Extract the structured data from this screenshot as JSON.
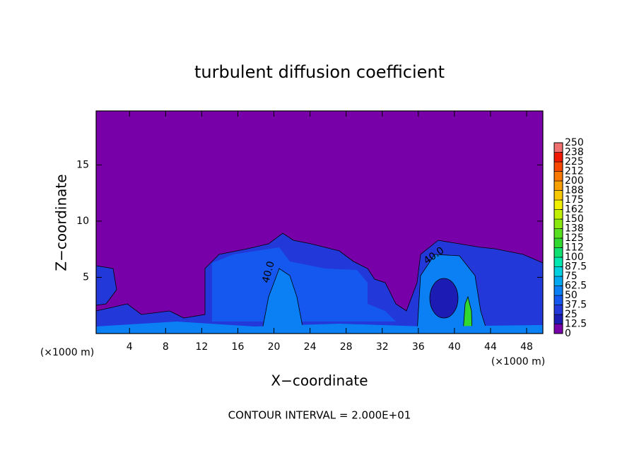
{
  "chart_data": {
    "type": "contour",
    "title": "turbulent diffusion coefficient",
    "xlabel": "X−coordinate",
    "ylabel": "Z−coordinate",
    "x_unit_left": "(×1000 m)",
    "x_unit_right": "(×1000 m)",
    "footer": "CONTOUR INTERVAL = 2.000E+01",
    "contour_labels": [
      "40.0",
      "40.0"
    ],
    "xlim": [
      0.3,
      49.8
    ],
    "xticks": [
      4,
      8,
      12,
      16,
      20,
      24,
      28,
      32,
      36,
      40,
      44,
      48
    ],
    "ylim": [
      0,
      19.8
    ],
    "yticks": [
      5,
      10,
      15
    ],
    "colorbar": {
      "levels": [
        0,
        12.5,
        25,
        37.5,
        50,
        62.5,
        75,
        87.5,
        100,
        {
          "value": 112.5,
          "label": "112"
        },
        125,
        {
          "value": 137.5,
          "label": "138"
        },
        150,
        {
          "value": 162.5,
          "label": "162"
        },
        175,
        {
          "value": 187.5,
          "label": "188"
        },
        200,
        {
          "value": 212.5,
          "label": "212"
        },
        225,
        {
          "value": 237.5,
          "label": "238"
        },
        250
      ],
      "colors": [
        "#7800a8",
        "#1c1cb4",
        "#2238d8",
        "#1458f0",
        "#0a80f4",
        "#00a8f0",
        "#00d0e0",
        "#00e8b0",
        "#10e070",
        "#30d830",
        "#58e020",
        "#88e810",
        "#c0f000",
        "#f0f000",
        "#f8c800",
        "#f8a000",
        "#f87800",
        "#f84800",
        "#f01800",
        "#f07070"
      ]
    }
  }
}
